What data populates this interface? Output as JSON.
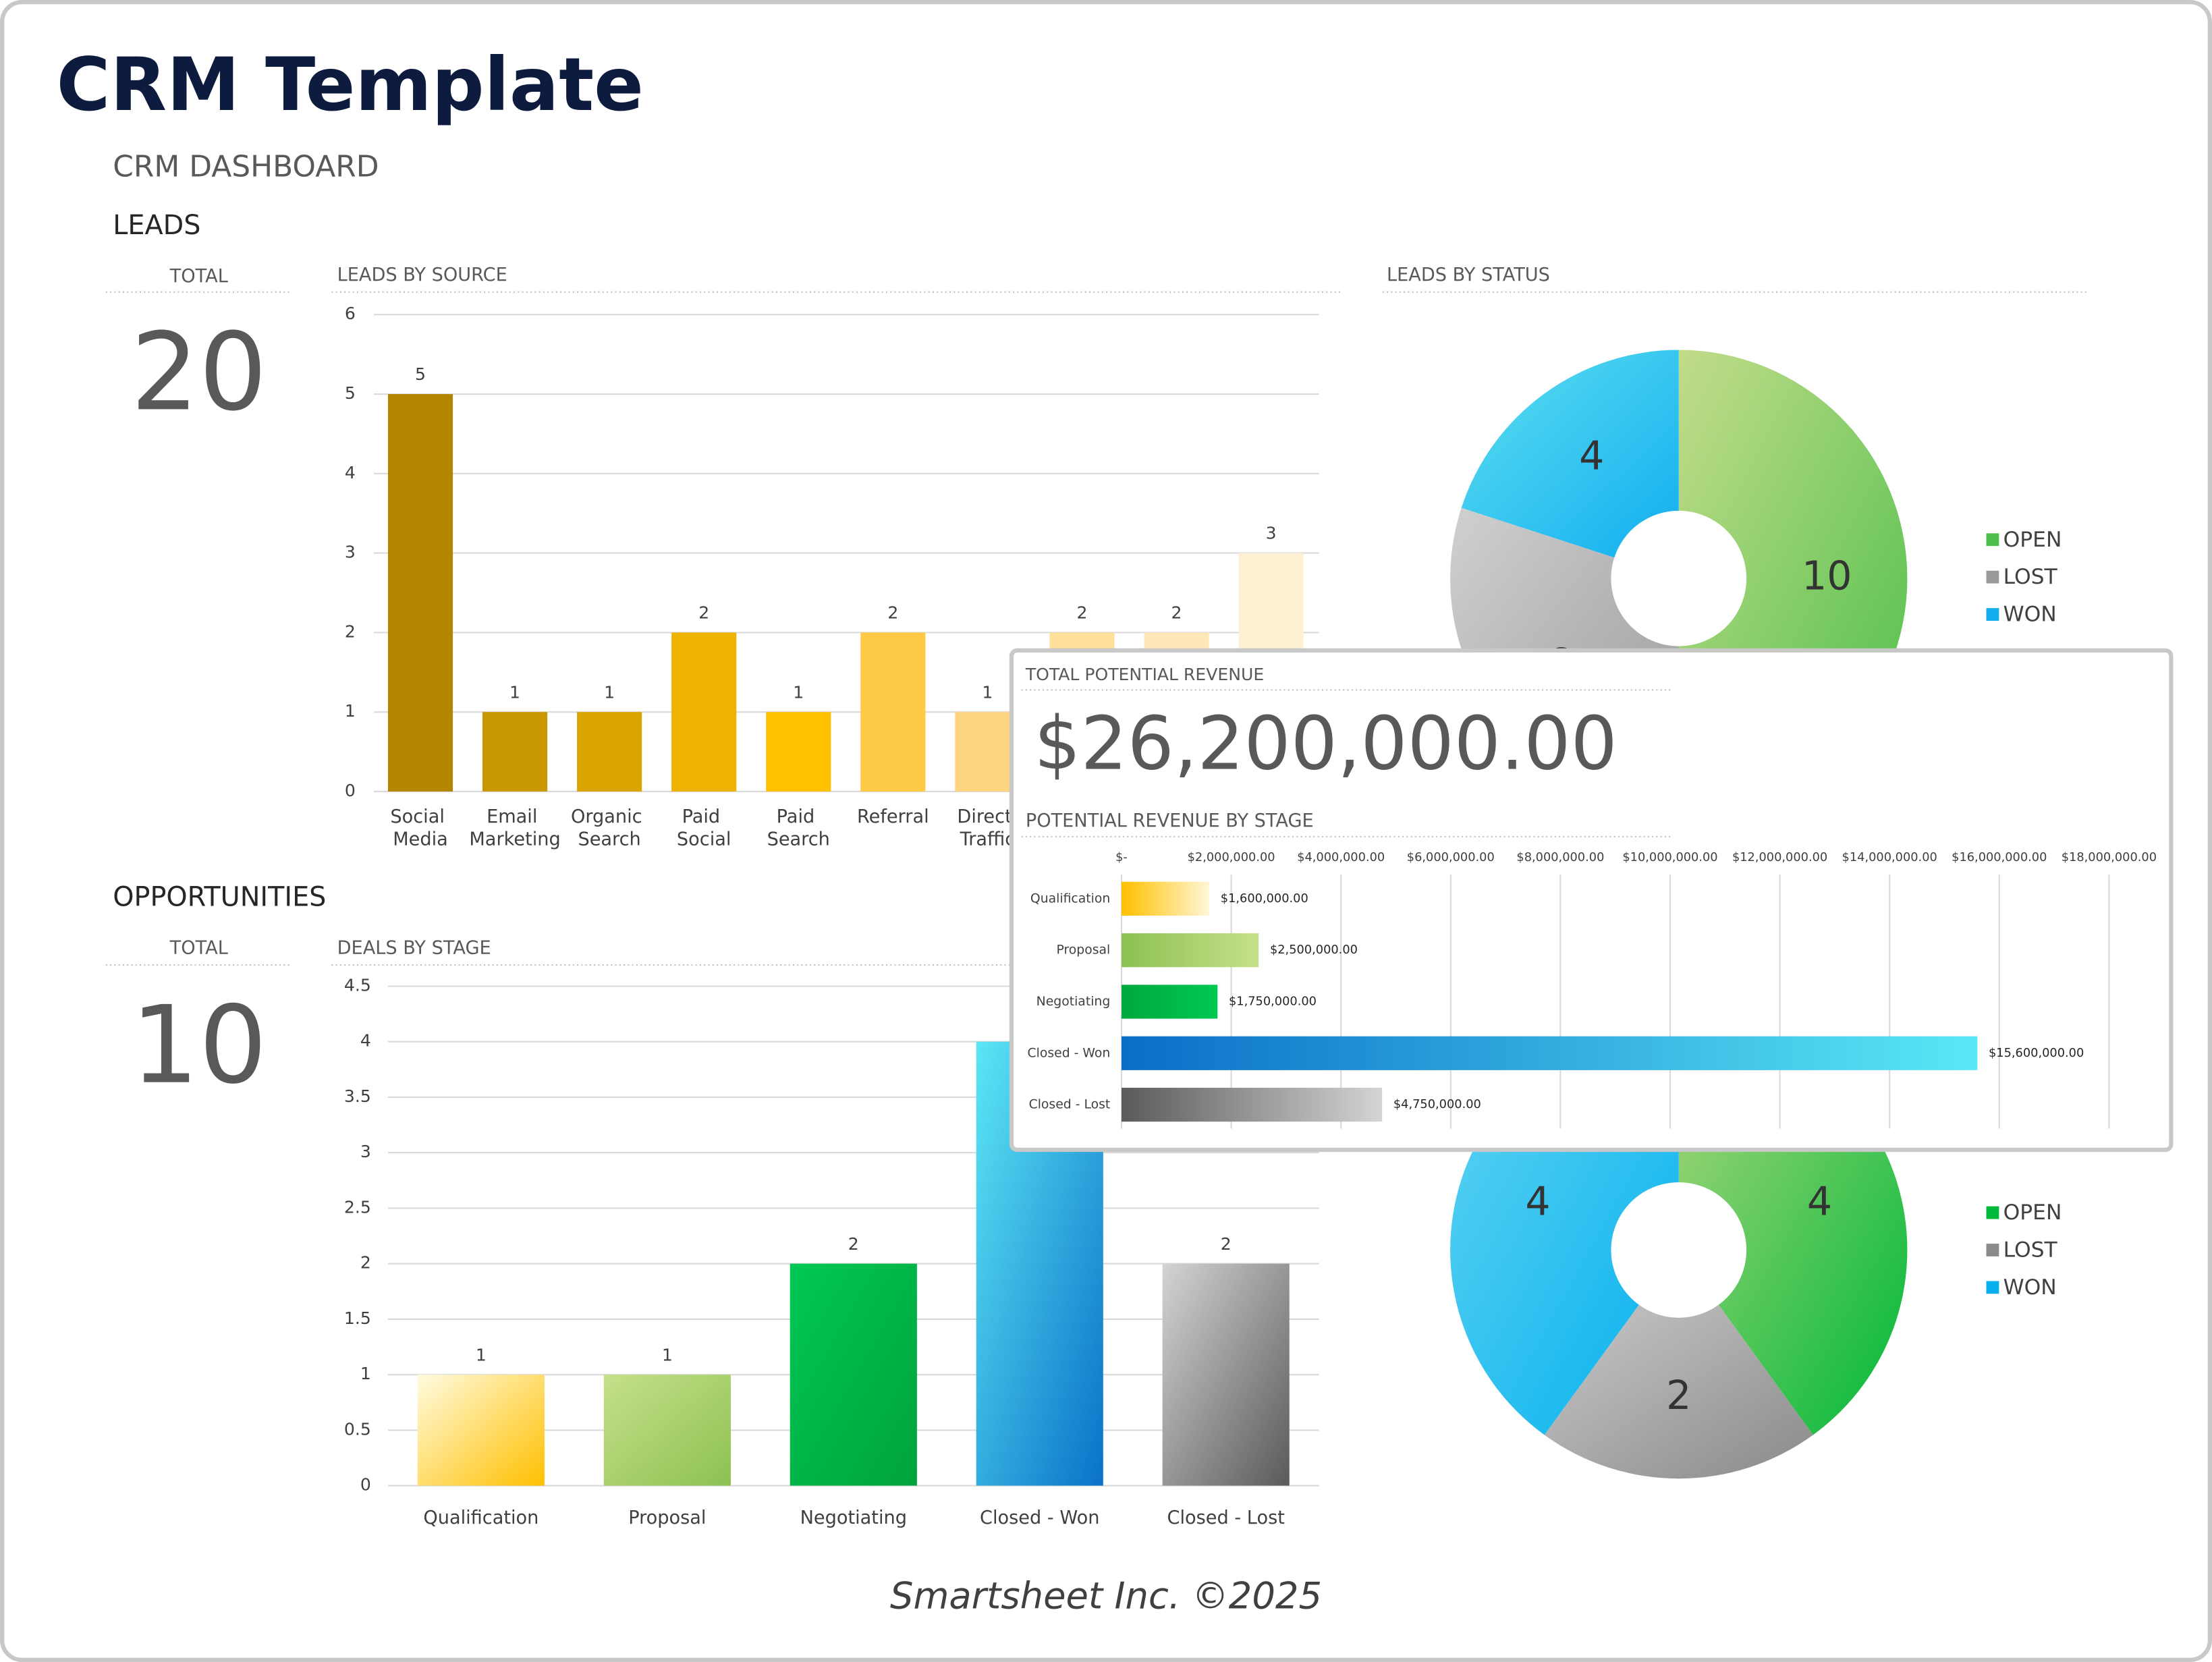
{
  "header": {
    "title": "CRM Template",
    "subtitle": "CRM DASHBOARD"
  },
  "leads": {
    "heading": "LEADS",
    "total_label": "TOTAL",
    "total": 20
  },
  "opportunities": {
    "heading": "OPPORTUNITIES",
    "total_label": "TOTAL",
    "total": 10
  },
  "revenue": {
    "total_label": "TOTAL POTENTIAL REVENUE",
    "total": "$26,200,000.00"
  },
  "footer": "Smartsheet Inc. ©2025",
  "chart_data": [
    {
      "type": "bar",
      "title": "LEADS BY SOURCE",
      "categories": [
        "Social Media",
        "Email Marketing",
        "Organic Search",
        "Paid Social",
        "Paid Search",
        "Referral",
        "Direct Traffic",
        null,
        null,
        null
      ],
      "values": [
        5,
        1,
        1,
        2,
        1,
        2,
        1,
        2,
        2,
        3
      ],
      "colors": [
        "#b38600",
        "#c99700",
        "#dba500",
        "#eeb200",
        "#ffc000",
        "#ffca45",
        "#ffd680",
        "#ffdf99",
        "#ffe8b8",
        "#fff0d4"
      ],
      "ylim": [
        0,
        6
      ],
      "yticks": [
        0,
        1,
        2,
        3,
        4,
        5,
        6
      ],
      "grid": true
    },
    {
      "type": "pie",
      "title": "LEADS BY STATUS",
      "categories": [
        "OPEN",
        "LOST",
        "WON"
      ],
      "values": [
        10,
        6,
        4
      ],
      "colors": [
        [
          "#c3dc8a",
          "#4cbf4a"
        ],
        [
          "#d0d0d0",
          "#9a9a9a"
        ],
        [
          "#5ee0f0",
          "#12aef0"
        ]
      ],
      "legend": "right"
    },
    {
      "type": "bar",
      "title": "DEALS BY STAGE",
      "categories": [
        "Qualification",
        "Proposal",
        "Negotiating",
        "Closed - Won",
        "Closed - Lost"
      ],
      "values": [
        1,
        1,
        2,
        4,
        2
      ],
      "colors": [
        [
          "#fffbe0",
          "#ffc000"
        ],
        [
          "#c6e08a",
          "#8cc152"
        ],
        [
          "#00c853",
          "#00a33c"
        ],
        [
          "#5ce6f5",
          "#0a72c8"
        ],
        [
          "#d4d4d4",
          "#5a5a5a"
        ]
      ],
      "ylim": [
        0,
        4.5
      ],
      "yticks": [
        0,
        0.5,
        1,
        1.5,
        2,
        2.5,
        3,
        3.5,
        4,
        4.5
      ],
      "grid": true
    },
    {
      "type": "pie",
      "categories": [
        "OPEN",
        "LOST",
        "WON"
      ],
      "values": [
        4,
        2,
        4
      ],
      "colors": [
        [
          "#a9d67a",
          "#00b83a"
        ],
        [
          "#c8c8c8",
          "#8a8a8a"
        ],
        [
          "#5fd4f2",
          "#06b0ee"
        ]
      ],
      "legend": "right"
    },
    {
      "type": "bar",
      "orientation": "horizontal",
      "title": "POTENTIAL REVENUE BY STAGE",
      "categories": [
        "Qualification",
        "Proposal",
        "Negotiating",
        "Closed - Won",
        "Closed - Lost"
      ],
      "values": [
        1600000,
        2500000,
        1750000,
        15600000,
        4750000
      ],
      "value_labels": [
        "$1,600,000.00",
        "$2,500,000.00",
        "$1,750,000.00",
        "$15,600,000.00",
        "$4,750,000.00"
      ],
      "colors": [
        [
          "#ffc000",
          "#fff7d6"
        ],
        [
          "#8cc152",
          "#c6e08a"
        ],
        [
          "#00a83e",
          "#00c853"
        ],
        [
          "#0a6ec8",
          "#5ae8f5"
        ],
        [
          "#5a5a5a",
          "#d4d4d4"
        ]
      ],
      "xlim": [
        0,
        18000000
      ],
      "xticks": [
        {
          "value": 0,
          "label": "$-"
        },
        {
          "value": 2000000,
          "label": "$2,000,000.00"
        },
        {
          "value": 4000000,
          "label": "$4,000,000.00"
        },
        {
          "value": 6000000,
          "label": "$6,000,000.00"
        },
        {
          "value": 8000000,
          "label": "$8,000,000.00"
        },
        {
          "value": 10000000,
          "label": "$10,000,000.00"
        },
        {
          "value": 12000000,
          "label": "$12,000,000.00"
        },
        {
          "value": 14000000,
          "label": "$14,000,000.00"
        },
        {
          "value": 16000000,
          "label": "$16,000,000.00"
        },
        {
          "value": 18000000,
          "label": "$18,000,000.00"
        }
      ],
      "grid": true
    }
  ]
}
